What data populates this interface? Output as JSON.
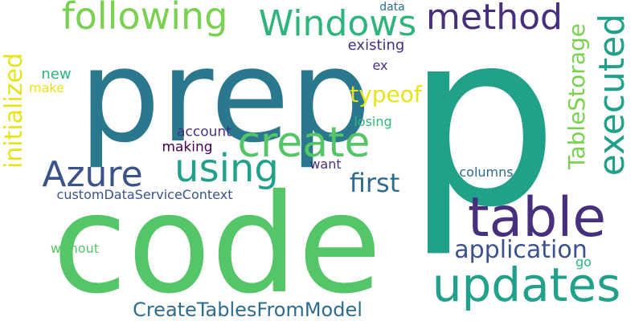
{
  "palette": {
    "background": "#ffffff",
    "teal": "#21a08a",
    "green": "#55c667",
    "lime": "#7ad151",
    "dark_purple": "#46307e",
    "blue_slate": "#2e6c8e",
    "indigo": "#3b528b",
    "yellow": "#e5e419",
    "deep_purple": "#440154"
  },
  "words": [
    {
      "text": "p",
      "color": "#21a08a"
    },
    {
      "text": "code",
      "color": "#55c667"
    },
    {
      "text": "prep",
      "color": "#2a788e"
    },
    {
      "text": "table",
      "color": "#46307e"
    },
    {
      "text": "updates",
      "color": "#21a08a"
    },
    {
      "text": "following",
      "color": "#7ad151"
    },
    {
      "text": "Windows",
      "color": "#2fb47c"
    },
    {
      "text": "method",
      "color": "#46307e"
    },
    {
      "text": "executed",
      "color": "#21a08a"
    },
    {
      "text": "create",
      "color": "#55c667"
    },
    {
      "text": "using",
      "color": "#21a08a"
    },
    {
      "text": "Azure",
      "color": "#3b528b"
    },
    {
      "text": "TableStorage",
      "color": "#7ad151"
    },
    {
      "text": "initialized",
      "color": "#e5e419"
    },
    {
      "text": "application",
      "color": "#3b528b"
    },
    {
      "text": "first",
      "color": "#2e6c8e"
    },
    {
      "text": "CreateTablesFromModel",
      "color": "#2e6c8e"
    },
    {
      "text": "typeof",
      "color": "#e5e419"
    },
    {
      "text": "customDataServiceContext",
      "color": "#3b528b"
    },
    {
      "text": "existing",
      "color": "#46307e"
    },
    {
      "text": "data",
      "color": "#2e6c8e"
    },
    {
      "text": "new",
      "color": "#2fb47c"
    },
    {
      "text": "make",
      "color": "#e5e419"
    },
    {
      "text": "ex",
      "color": "#46307e"
    },
    {
      "text": "account",
      "color": "#46307e"
    },
    {
      "text": "losing",
      "color": "#2fb47c"
    },
    {
      "text": "making",
      "color": "#440154"
    },
    {
      "text": "want",
      "color": "#46307e"
    },
    {
      "text": "columns",
      "color": "#2e6c8e"
    },
    {
      "text": "without",
      "color": "#55c667"
    },
    {
      "text": "go",
      "color": "#2fb47c"
    }
  ]
}
